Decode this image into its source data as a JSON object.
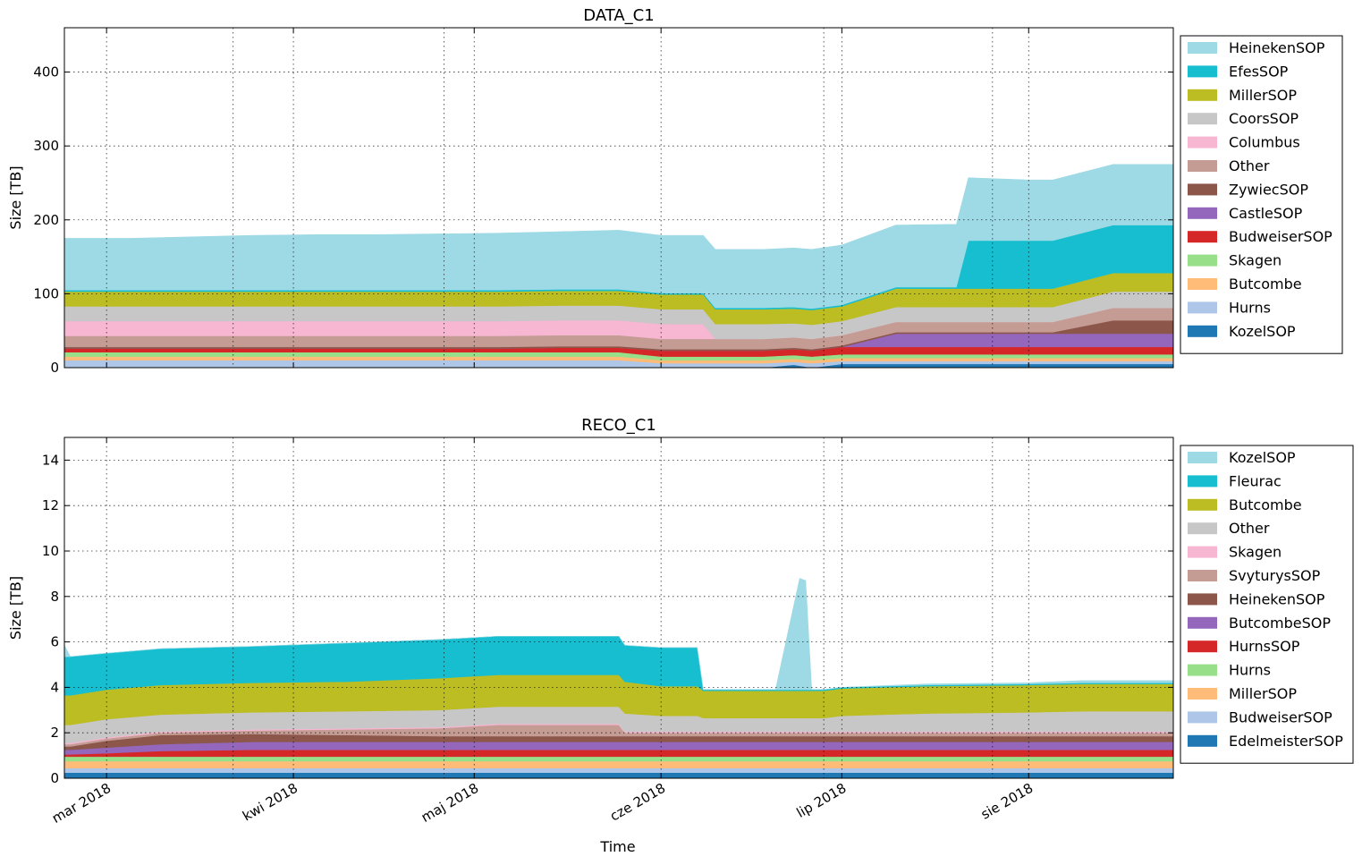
{
  "figure": {
    "xlabel": "Time",
    "month_ticks": [
      {
        "date": "2018-03-01",
        "label": "mar 2018"
      },
      {
        "date": "2018-04-01",
        "label": "kwi 2018"
      },
      {
        "date": "2018-05-01",
        "label": "maj 2018"
      },
      {
        "date": "2018-06-01",
        "label": "cze 2018"
      },
      {
        "date": "2018-07-01",
        "label": "lip 2018"
      },
      {
        "date": "2018-08-01",
        "label": "sie 2018"
      }
    ],
    "week_gridlines": [
      "2018-03-22",
      "2018-04-26",
      "2018-06-28",
      "2018-07-26"
    ]
  },
  "chart_data": [
    {
      "type": "area",
      "stacked": true,
      "title": "DATA_C1",
      "ylabel": "Size [TB]",
      "xlim": [
        "2018-02-22",
        "2018-08-25"
      ],
      "ylim": [
        0,
        460
      ],
      "yticks": [
        0,
        100,
        200,
        300,
        400
      ],
      "grid": true,
      "legend": "outside-right",
      "x": [
        "2018-02-22",
        "2018-03-05",
        "2018-03-15",
        "2018-03-25",
        "2018-04-05",
        "2018-04-15",
        "2018-04-25",
        "2018-05-05",
        "2018-05-15",
        "2018-05-25",
        "2018-06-01",
        "2018-06-08",
        "2018-06-10",
        "2018-06-18",
        "2018-06-23",
        "2018-06-26",
        "2018-07-01",
        "2018-07-10",
        "2018-07-20",
        "2018-07-22",
        "2018-08-01",
        "2018-08-05",
        "2018-08-15",
        "2018-08-25"
      ],
      "series": [
        {
          "name": "KozelSOP",
          "color": "#1f77b4",
          "values": [
            0,
            0,
            0,
            0,
            0,
            0,
            0,
            0,
            0,
            0,
            0,
            0,
            0,
            0,
            4,
            0,
            5,
            5,
            5,
            5,
            5,
            5,
            5,
            5
          ]
        },
        {
          "name": "Hurns",
          "color": "#aec7e8",
          "values": [
            10,
            10,
            10,
            10,
            10,
            10,
            10,
            10,
            10,
            10,
            6,
            6,
            6,
            6,
            4,
            6,
            4,
            4,
            4,
            4,
            4,
            4,
            4,
            4
          ]
        },
        {
          "name": "Butcombe",
          "color": "#ffbb78",
          "values": [
            5,
            5,
            5,
            5,
            5,
            5,
            5,
            5,
            5,
            5,
            4,
            4,
            4,
            4,
            4,
            4,
            4,
            4,
            4,
            4,
            4,
            4,
            4,
            4
          ]
        },
        {
          "name": "Skagen",
          "color": "#98df8a",
          "values": [
            6,
            6,
            6,
            6,
            6,
            6,
            6,
            6,
            6,
            6,
            5,
            5,
            5,
            5,
            5,
            5,
            5,
            5,
            5,
            5,
            5,
            5,
            5,
            5
          ]
        },
        {
          "name": "BudweiserSOP",
          "color": "#d62728",
          "values": [
            5,
            5,
            5,
            5,
            5,
            5,
            5,
            5,
            6,
            6,
            8,
            8,
            8,
            8,
            8,
            8,
            10,
            10,
            10,
            10,
            10,
            10,
            10,
            10
          ]
        },
        {
          "name": "CastleSOP",
          "color": "#9467bd",
          "values": [
            0,
            0,
            0,
            0,
            0,
            0,
            0,
            0,
            0,
            0,
            0,
            0,
            0,
            0,
            0,
            0,
            0,
            18,
            18,
            18,
            18,
            18,
            18,
            18
          ]
        },
        {
          "name": "ZywiecSOP",
          "color": "#8c564b",
          "values": [
            2,
            2,
            2,
            2,
            2,
            2,
            2,
            2,
            2,
            2,
            2,
            2,
            2,
            2,
            2,
            2,
            2,
            2,
            2,
            2,
            2,
            2,
            18,
            18
          ]
        },
        {
          "name": "Other",
          "color": "#c49c94",
          "values": [
            15,
            15,
            15,
            15,
            15,
            15,
            15,
            15,
            15,
            15,
            14,
            14,
            14,
            14,
            14,
            14,
            14,
            14,
            14,
            14,
            14,
            14,
            17,
            17
          ]
        },
        {
          "name": "Columbus",
          "color": "#f7b6d2",
          "values": [
            20,
            20,
            20,
            20,
            20,
            20,
            20,
            20,
            20,
            20,
            20,
            20,
            0,
            0,
            0,
            0,
            0,
            0,
            0,
            0,
            0,
            0,
            0,
            0
          ]
        },
        {
          "name": "CoorsSOP",
          "color": "#c7c7c7",
          "values": [
            20,
            20,
            20,
            20,
            20,
            20,
            20,
            20,
            20,
            20,
            20,
            20,
            20,
            20,
            19,
            19,
            19,
            20,
            20,
            20,
            20,
            20,
            22,
            22
          ]
        },
        {
          "name": "MillerSOP",
          "color": "#bcbd22",
          "values": [
            20,
            20,
            20,
            20,
            20,
            20,
            20,
            20,
            20,
            20,
            20,
            20,
            20,
            20,
            20,
            20,
            20,
            25,
            25,
            25,
            25,
            25,
            25,
            25
          ]
        },
        {
          "name": "EfesSOP",
          "color": "#17becf",
          "values": [
            2,
            2,
            2,
            2,
            2,
            2,
            2,
            2,
            2,
            2,
            2,
            2,
            2,
            2,
            2,
            2,
            2,
            2,
            2,
            65,
            65,
            65,
            65,
            65
          ]
        },
        {
          "name": "HeinekenSOP",
          "color": "#9edae5",
          "values": [
            70,
            70,
            72,
            74,
            75,
            75,
            76,
            77,
            78,
            80,
            78,
            78,
            79,
            79,
            80,
            80,
            81,
            84,
            85,
            85,
            82,
            82,
            82,
            82
          ]
        }
      ]
    },
    {
      "type": "area",
      "stacked": true,
      "title": "RECO_C1",
      "ylabel": "Size [TB]",
      "xlim": [
        "2018-02-22",
        "2018-08-25"
      ],
      "ylim": [
        0,
        15
      ],
      "yticks": [
        0,
        2,
        4,
        6,
        8,
        10,
        12,
        14
      ],
      "grid": true,
      "legend": "outside-right",
      "x": [
        "2018-02-22",
        "2018-02-23",
        "2018-03-01",
        "2018-03-10",
        "2018-03-25",
        "2018-04-10",
        "2018-04-25",
        "2018-05-05",
        "2018-05-25",
        "2018-05-26",
        "2018-06-01",
        "2018-06-07",
        "2018-06-08",
        "2018-06-20",
        "2018-06-24",
        "2018-06-25",
        "2018-06-26",
        "2018-06-28",
        "2018-07-01",
        "2018-07-15",
        "2018-08-01",
        "2018-08-10",
        "2018-08-25"
      ],
      "series": [
        {
          "name": "EdelmeisterSOP",
          "color": "#1f77b4",
          "values": [
            0.25,
            0.25,
            0.25,
            0.25,
            0.25,
            0.25,
            0.25,
            0.25,
            0.25,
            0.25,
            0.25,
            0.25,
            0.25,
            0.25,
            0.25,
            0.25,
            0.25,
            0.25,
            0.25,
            0.25,
            0.25,
            0.25,
            0.25
          ]
        },
        {
          "name": "BudweiserSOP",
          "color": "#aec7e8",
          "values": [
            0.2,
            0.2,
            0.2,
            0.2,
            0.2,
            0.2,
            0.2,
            0.2,
            0.2,
            0.2,
            0.2,
            0.2,
            0.2,
            0.2,
            0.2,
            0.2,
            0.2,
            0.2,
            0.2,
            0.2,
            0.2,
            0.2,
            0.2
          ]
        },
        {
          "name": "MillerSOP",
          "color": "#ffbb78",
          "values": [
            0.3,
            0.3,
            0.3,
            0.3,
            0.3,
            0.3,
            0.3,
            0.3,
            0.3,
            0.3,
            0.3,
            0.3,
            0.3,
            0.3,
            0.3,
            0.3,
            0.3,
            0.3,
            0.3,
            0.3,
            0.3,
            0.3,
            0.3
          ]
        },
        {
          "name": "Hurns",
          "color": "#98df8a",
          "values": [
            0.2,
            0.2,
            0.2,
            0.2,
            0.2,
            0.2,
            0.2,
            0.2,
            0.2,
            0.2,
            0.2,
            0.2,
            0.2,
            0.2,
            0.2,
            0.2,
            0.2,
            0.2,
            0.2,
            0.2,
            0.2,
            0.2,
            0.2
          ]
        },
        {
          "name": "HurnsSOP",
          "color": "#d62728",
          "values": [
            0.1,
            0.1,
            0.15,
            0.25,
            0.3,
            0.3,
            0.3,
            0.3,
            0.3,
            0.3,
            0.3,
            0.3,
            0.3,
            0.3,
            0.3,
            0.3,
            0.3,
            0.3,
            0.3,
            0.3,
            0.3,
            0.3,
            0.3
          ]
        },
        {
          "name": "ButcombeSOP",
          "color": "#9467bd",
          "values": [
            0.2,
            0.2,
            0.25,
            0.3,
            0.35,
            0.35,
            0.35,
            0.35,
            0.35,
            0.35,
            0.35,
            0.35,
            0.35,
            0.35,
            0.35,
            0.35,
            0.35,
            0.35,
            0.35,
            0.35,
            0.35,
            0.35,
            0.35
          ]
        },
        {
          "name": "HeinekenSOP",
          "color": "#8c564b",
          "values": [
            0.15,
            0.15,
            0.3,
            0.4,
            0.35,
            0.3,
            0.25,
            0.25,
            0.25,
            0.25,
            0.25,
            0.25,
            0.25,
            0.25,
            0.25,
            0.25,
            0.25,
            0.25,
            0.25,
            0.25,
            0.25,
            0.25,
            0.25
          ]
        },
        {
          "name": "SvyturysSOP",
          "color": "#c49c94",
          "values": [
            0.1,
            0.1,
            0.1,
            0.1,
            0.15,
            0.25,
            0.35,
            0.5,
            0.5,
            0.15,
            0.15,
            0.15,
            0.15,
            0.15,
            0.15,
            0.15,
            0.15,
            0.15,
            0.15,
            0.15,
            0.15,
            0.15,
            0.15
          ]
        },
        {
          "name": "Skagen",
          "color": "#f7b6d2",
          "values": [
            0.05,
            0.05,
            0.05,
            0.05,
            0.05,
            0.05,
            0.05,
            0.05,
            0.05,
            0.05,
            0.05,
            0.05,
            0.05,
            0.05,
            0.05,
            0.05,
            0.05,
            0.05,
            0.05,
            0.05,
            0.05,
            0.05,
            0.05
          ]
        },
        {
          "name": "Other",
          "color": "#c7c7c7",
          "values": [
            0.8,
            0.8,
            0.8,
            0.75,
            0.75,
            0.75,
            0.75,
            0.75,
            0.75,
            0.8,
            0.7,
            0.7,
            0.6,
            0.6,
            0.6,
            0.6,
            0.6,
            0.6,
            0.7,
            0.8,
            0.85,
            0.9,
            0.9
          ]
        },
        {
          "name": "Butcombe",
          "color": "#bcbd22",
          "values": [
            1.3,
            1.3,
            1.3,
            1.3,
            1.3,
            1.3,
            1.4,
            1.4,
            1.4,
            1.4,
            1.3,
            1.3,
            1.2,
            1.2,
            1.2,
            1.2,
            1.2,
            1.2,
            1.2,
            1.2,
            1.2,
            1.2,
            1.2
          ]
        },
        {
          "name": "Fleurac",
          "color": "#17becf",
          "values": [
            1.7,
            1.7,
            1.6,
            1.6,
            1.6,
            1.7,
            1.7,
            1.7,
            1.7,
            1.6,
            1.7,
            1.7,
            0.05,
            0.05,
            0.05,
            0.05,
            0.05,
            0.05,
            0.05,
            0.05,
            0.05,
            0.05,
            0.05
          ]
        },
        {
          "name": "KozelSOP",
          "color": "#9edae5",
          "values": [
            0.5,
            0.0,
            0.0,
            0.0,
            0.0,
            0.0,
            0.0,
            0.0,
            0.0,
            0.0,
            0.0,
            0.0,
            0.0,
            0.0,
            4.9,
            4.8,
            0.0,
            0.0,
            0.0,
            0.05,
            0.05,
            0.1,
            0.1
          ]
        }
      ]
    }
  ]
}
